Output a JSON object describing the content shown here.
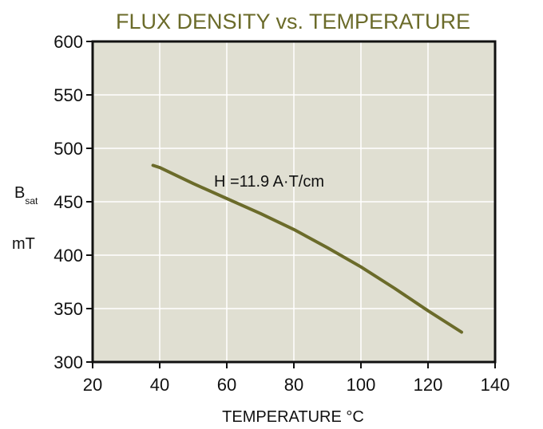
{
  "chart_data": {
    "type": "line",
    "title": "FLUX DENSITY vs. TEMPERATURE",
    "xlabel": "TEMPERATURE °C",
    "ylabel": "B",
    "ylabel_sub": "sat",
    "ylabel_unit": "mT",
    "annotation": "H =11.9 A·T/cm",
    "xlim": [
      20,
      140
    ],
    "ylim": [
      300,
      600
    ],
    "xticks": [
      20,
      40,
      60,
      80,
      100,
      120,
      140
    ],
    "yticks": [
      300,
      350,
      400,
      450,
      500,
      550,
      600
    ],
    "grid": true,
    "series": [
      {
        "color": "#6b6b2a",
        "x": [
          38,
          40,
          50,
          60,
          70,
          80,
          90,
          100,
          110,
          120,
          130
        ],
        "y": [
          484,
          482,
          467,
          453,
          439,
          424,
          407,
          389,
          369,
          348,
          328
        ]
      }
    ],
    "colors": {
      "plot_bg": "#e0dfd2",
      "grid": "#ffffff",
      "title": "#6b6b2a"
    }
  }
}
